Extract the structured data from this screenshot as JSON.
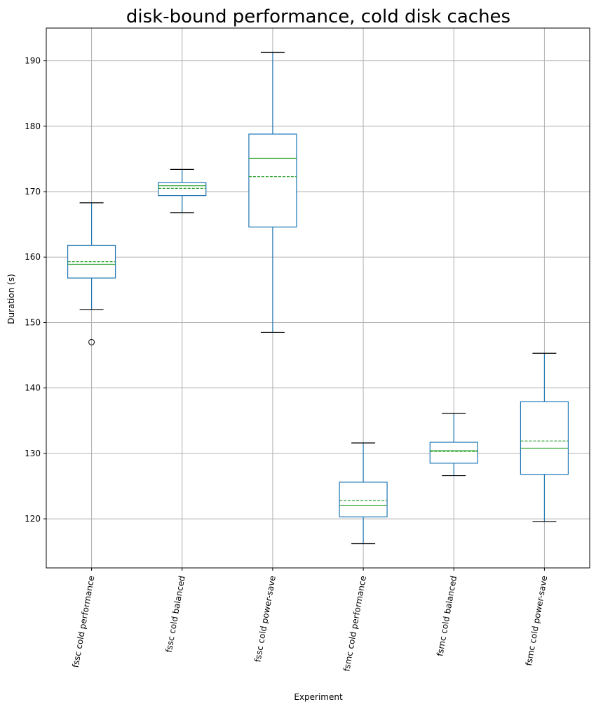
{
  "chart_data": {
    "type": "box",
    "title": "disk-bound performance, cold disk caches",
    "xlabel": "Experiment",
    "ylabel": "Duration (s)",
    "ylim": [
      112.5,
      195
    ],
    "yticks": [
      120,
      130,
      140,
      150,
      160,
      170,
      180,
      190
    ],
    "grid": true,
    "colors": {
      "box": "#1f77b4",
      "median": "#2ca02c",
      "mean": "#2ca02c",
      "whisker": "#1f77b4",
      "cap": "#000000",
      "grid": "#b0b0b0",
      "axis": "#000000"
    },
    "categories": [
      "fssc cold performance",
      "fssc cold balanced",
      "fssc cold power-save",
      "fsmc cold performance",
      "fsmc cold balanced",
      "fsmc cold power-save"
    ],
    "boxes": [
      {
        "whislo": 152.0,
        "q1": 156.8,
        "med": 158.9,
        "mean": 159.3,
        "q3": 161.8,
        "whishi": 168.3,
        "fliers": [
          147.0
        ]
      },
      {
        "whislo": 166.8,
        "q1": 169.4,
        "med": 170.9,
        "mean": 170.5,
        "q3": 171.4,
        "whishi": 173.4,
        "fliers": []
      },
      {
        "whislo": 148.5,
        "q1": 164.6,
        "med": 175.1,
        "mean": 172.3,
        "q3": 178.8,
        "whishi": 191.3,
        "fliers": []
      },
      {
        "whislo": 116.2,
        "q1": 120.3,
        "med": 122.0,
        "mean": 122.8,
        "q3": 125.6,
        "whishi": 131.6,
        "fliers": []
      },
      {
        "whislo": 126.6,
        "q1": 128.5,
        "med": 130.4,
        "mean": 130.3,
        "q3": 131.7,
        "whishi": 136.1,
        "fliers": []
      },
      {
        "whislo": 119.6,
        "q1": 126.8,
        "med": 130.8,
        "mean": 131.9,
        "q3": 137.9,
        "whishi": 145.3,
        "fliers": []
      }
    ]
  }
}
